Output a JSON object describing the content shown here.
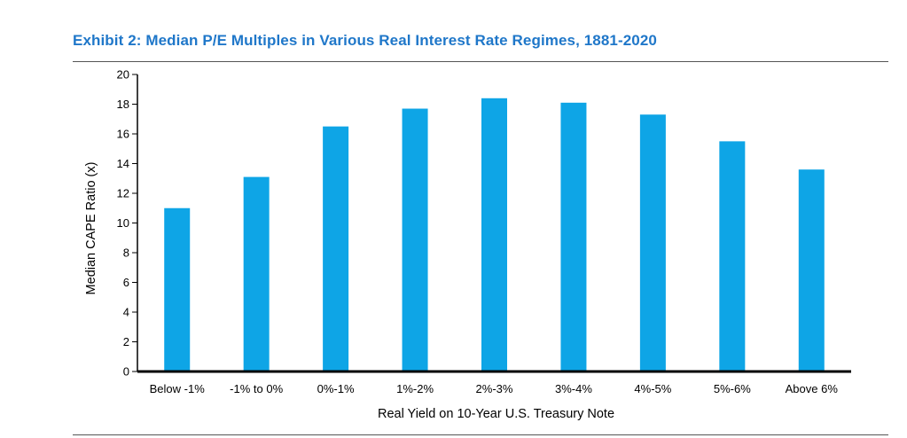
{
  "header": {
    "title": "Exhibit 2: Median P/E Multiples in Various Real Interest Rate Regimes, 1881-2020"
  },
  "colors": {
    "bar": "#0ea5e6",
    "title": "#1f77c9",
    "axis": "#000000"
  },
  "chart_data": {
    "type": "bar",
    "title": "Exhibit 2: Median P/E Multiples in Various Real Interest Rate Regimes, 1881-2020",
    "xlabel": "Real Yield on 10-Year U.S. Treasury Note",
    "ylabel": "Median CAPE Ratio (x)",
    "categories": [
      "Below -1%",
      "-1% to 0%",
      "0%-1%",
      "1%-2%",
      "2%-3%",
      "3%-4%",
      "4%-5%",
      "5%-6%",
      "Above 6%"
    ],
    "values": [
      11.0,
      13.1,
      16.5,
      17.7,
      18.4,
      18.1,
      17.3,
      15.5,
      13.6
    ],
    "ylim": [
      0,
      20
    ],
    "yticks": [
      0,
      2,
      4,
      6,
      8,
      10,
      12,
      14,
      16,
      18,
      20
    ],
    "grid": false,
    "legend": "none"
  }
}
